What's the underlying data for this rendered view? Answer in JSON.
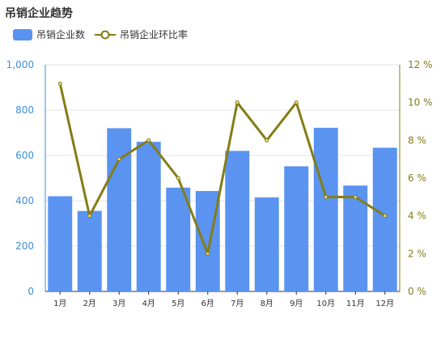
{
  "colors": {
    "bar": "#5a93f0",
    "line": "#847d16",
    "left_axis": "#3e8fd8",
    "right_axis": "#847d16",
    "grid": "#e6e6e6"
  },
  "chart_data": {
    "type": "bar",
    "title": "吊销企业趋势",
    "categories": [
      "1月",
      "2月",
      "3月",
      "4月",
      "5月",
      "6月",
      "7月",
      "8月",
      "9月",
      "10月",
      "11月",
      "12月"
    ],
    "series": [
      {
        "name": "吊销企业数",
        "type": "bar",
        "axis": "left",
        "values": [
          420,
          355,
          720,
          660,
          458,
          443,
          620,
          415,
          552,
          722,
          467,
          634
        ]
      },
      {
        "name": "吊销企业环比率",
        "type": "line",
        "axis": "right",
        "values": [
          11,
          4,
          7,
          8,
          6,
          2,
          10,
          8,
          10,
          5,
          5,
          4
        ]
      }
    ],
    "y_left": {
      "min": 0,
      "max": 1000,
      "ticks": [
        "0",
        "200",
        "400",
        "600",
        "800",
        "1,000"
      ]
    },
    "y_right": {
      "min": 0,
      "max": 12,
      "ticks": [
        "0 %",
        "2 %",
        "4 %",
        "6 %",
        "8 %",
        "10 %",
        "12 %"
      ]
    },
    "grid": true,
    "legend_position": "top-left"
  }
}
